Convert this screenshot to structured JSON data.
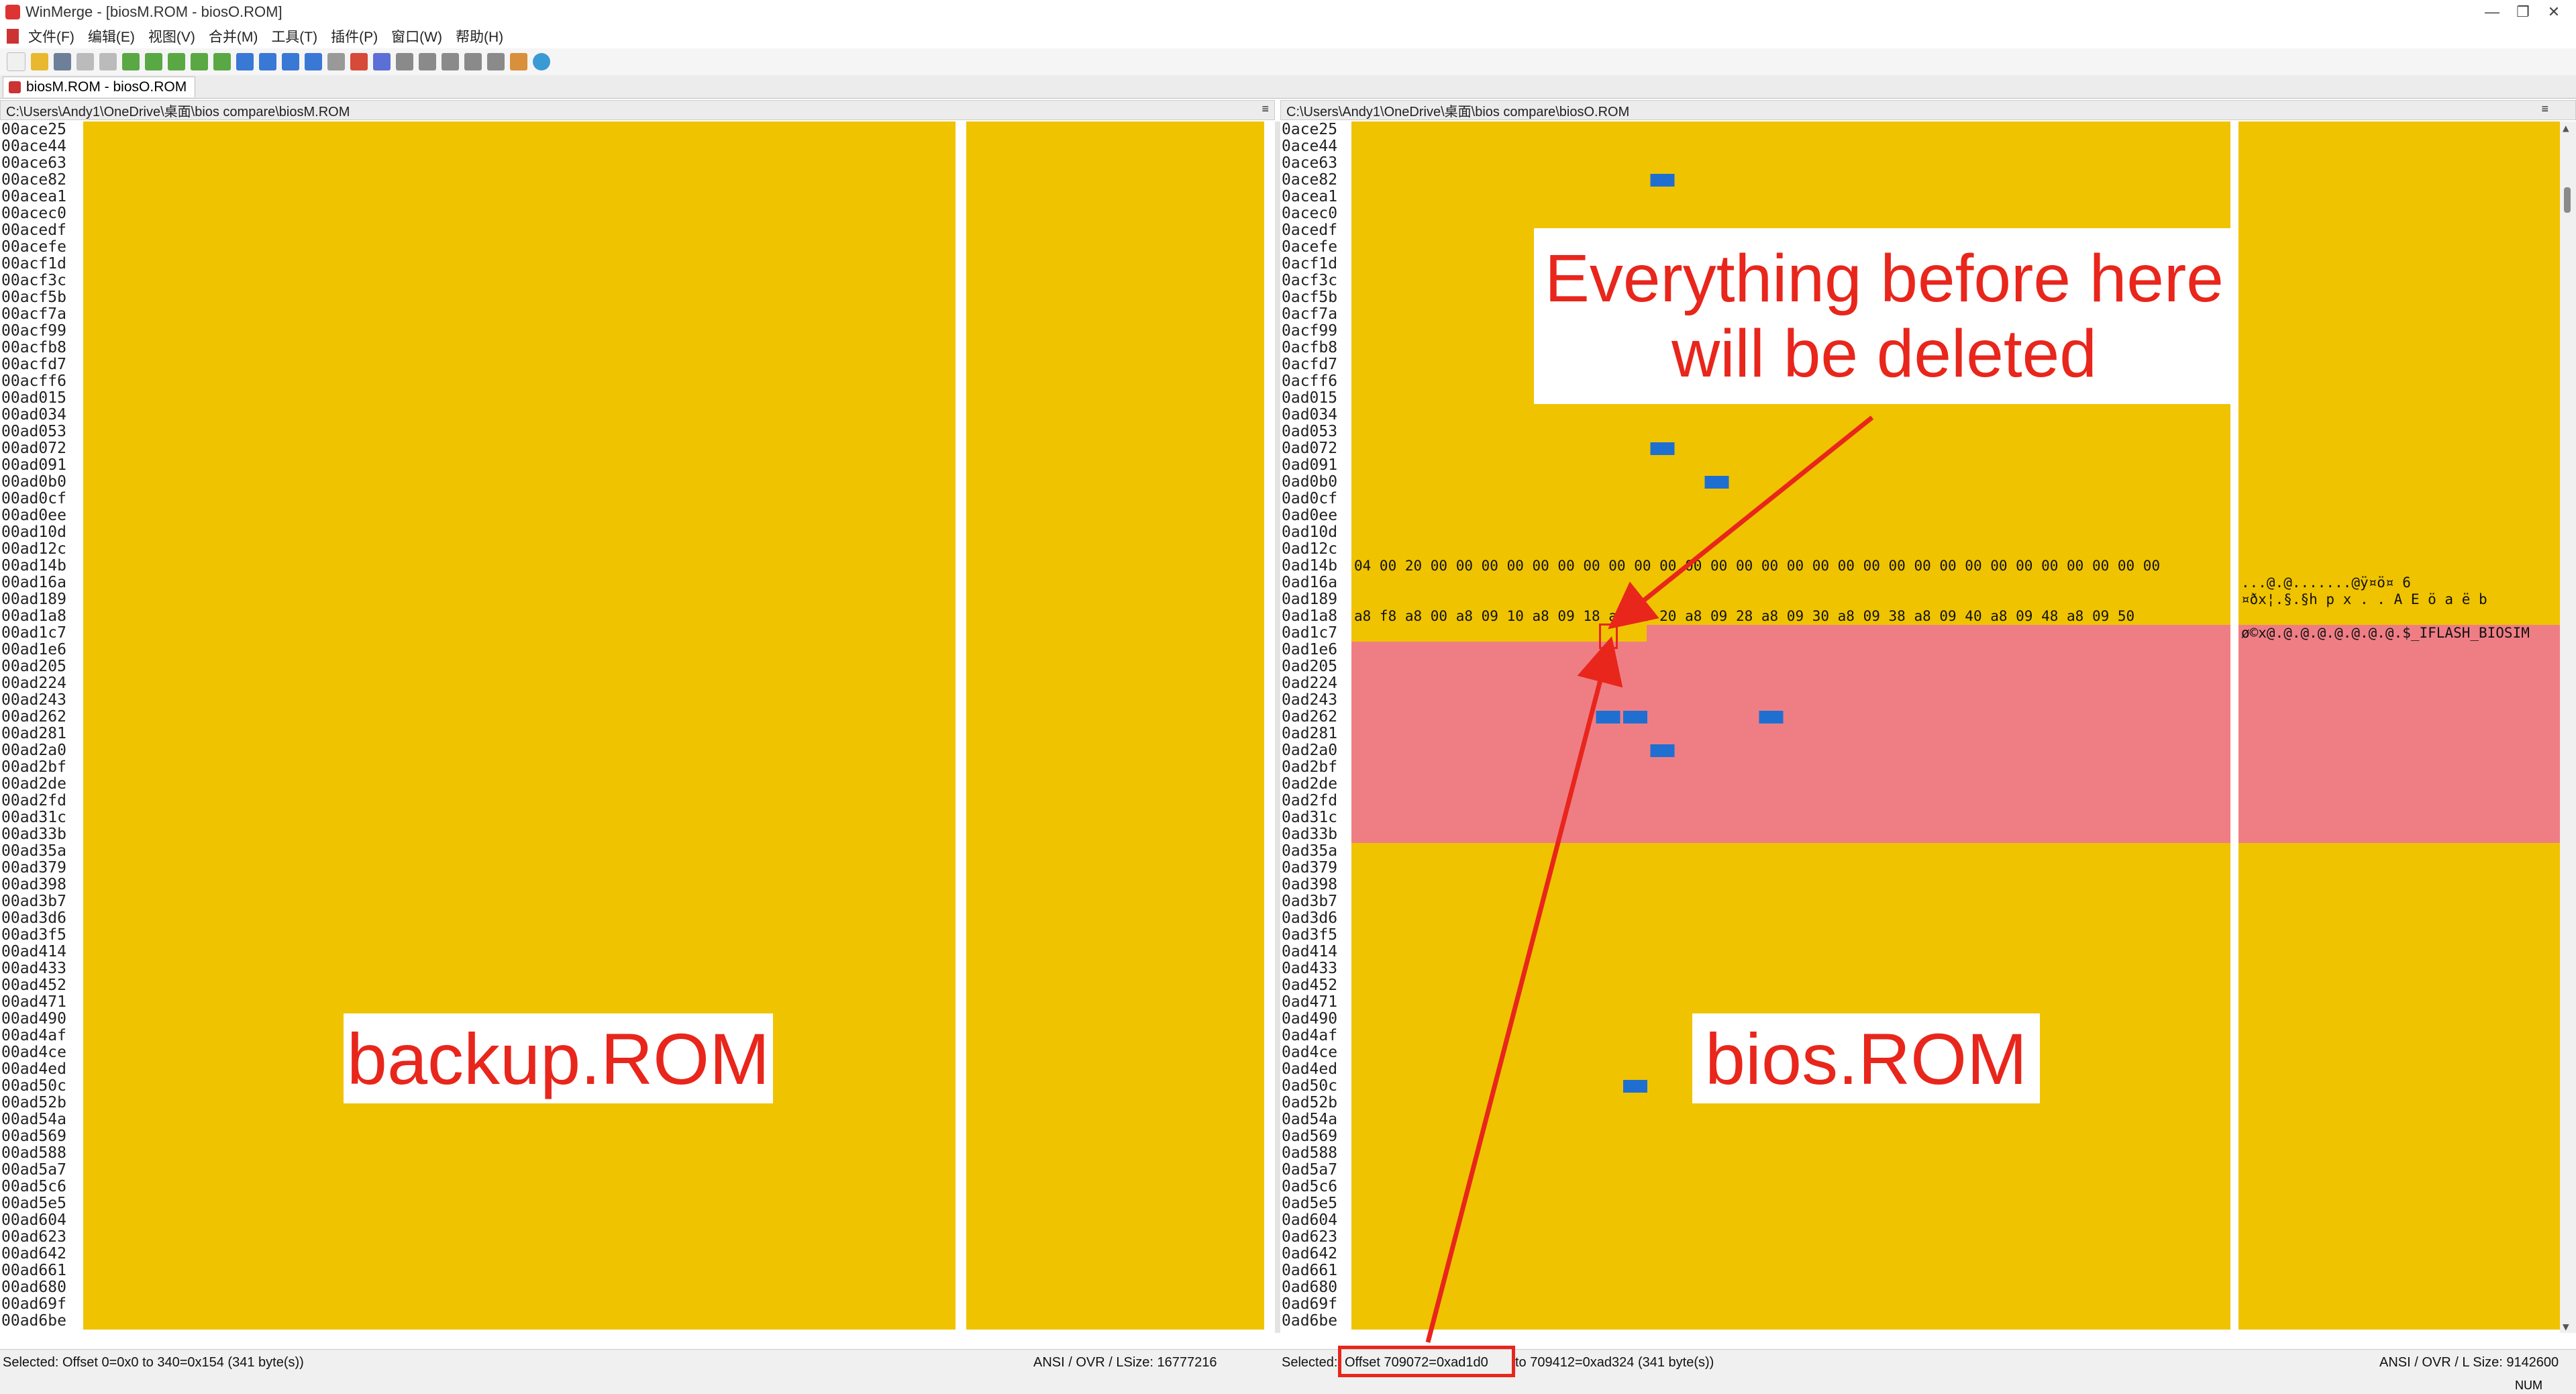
{
  "window": {
    "title": "WinMerge - [biosM.ROM - biosO.ROM]",
    "controls": [
      "—",
      "❐",
      "✕"
    ]
  },
  "menu": [
    "文件(F)",
    "编辑(E)",
    "视图(V)",
    "合并(M)",
    "工具(T)",
    "插件(P)",
    "窗口(W)",
    "帮助(H)"
  ],
  "tab": {
    "label": "biosM.ROM - biosO.ROM"
  },
  "left_pane": {
    "path": "C:\\Users\\Andy1\\OneDrive\\桌面\\bios compare\\biosM.ROM",
    "offsets": [
      "00ace25",
      "00ace44",
      "00ace63",
      "00ace82",
      "00acea1",
      "00acec0",
      "00acedf",
      "00acefe",
      "00acf1d",
      "00acf3c",
      "00acf5b",
      "00acf7a",
      "00acf99",
      "00acfb8",
      "00acfd7",
      "00acff6",
      "00ad015",
      "00ad034",
      "00ad053",
      "00ad072",
      "00ad091",
      "00ad0b0",
      "00ad0cf",
      "00ad0ee",
      "00ad10d",
      "00ad12c",
      "00ad14b",
      "00ad16a",
      "00ad189",
      "00ad1a8",
      "00ad1c7",
      "00ad1e6",
      "00ad205",
      "00ad224",
      "00ad243",
      "00ad262",
      "00ad281",
      "00ad2a0",
      "00ad2bf",
      "00ad2de",
      "00ad2fd",
      "00ad31c",
      "00ad33b",
      "00ad35a",
      "00ad379",
      "00ad398",
      "00ad3b7",
      "00ad3d6",
      "00ad3f5",
      "00ad414",
      "00ad433",
      "00ad452",
      "00ad471",
      "00ad490",
      "00ad4af",
      "00ad4ce",
      "00ad4ed",
      "00ad50c",
      "00ad52b",
      "00ad54a",
      "00ad569",
      "00ad588",
      "00ad5a7",
      "00ad5c6",
      "00ad5e5",
      "00ad604",
      "00ad623",
      "00ad642",
      "00ad661",
      "00ad680",
      "00ad69f",
      "00ad6be"
    ],
    "label_overlay": "backup.ROM"
  },
  "right_pane": {
    "path": "C:\\Users\\Andy1\\OneDrive\\桌面\\bios compare\\biosO.ROM",
    "offsets": [
      "0ace25",
      "0ace44",
      "0ace63",
      "0ace82",
      "0acea1",
      "0acec0",
      "0acedf",
      "0acefe",
      "0acf1d",
      "0acf3c",
      "0acf5b",
      "0acf7a",
      "0acf99",
      "0acfb8",
      "0acfd7",
      "0acff6",
      "0ad015",
      "0ad034",
      "0ad053",
      "0ad072",
      "0ad091",
      "0ad0b0",
      "0ad0cf",
      "0ad0ee",
      "0ad10d",
      "0ad12c",
      "0ad14b",
      "0ad16a",
      "0ad189",
      "0ad1a8",
      "0ad1c7",
      "0ad1e6",
      "0ad205",
      "0ad224",
      "0ad243",
      "0ad262",
      "0ad281",
      "0ad2a0",
      "0ad2bf",
      "0ad2de",
      "0ad2fd",
      "0ad31c",
      "0ad33b",
      "0ad35a",
      "0ad379",
      "0ad398",
      "0ad3b7",
      "0ad3d6",
      "0ad3f5",
      "0ad414",
      "0ad433",
      "0ad452",
      "0ad471",
      "0ad490",
      "0ad4af",
      "0ad4ce",
      "0ad4ed",
      "0ad50c",
      "0ad52b",
      "0ad54a",
      "0ad569",
      "0ad588",
      "0ad5a7",
      "0ad5c6",
      "0ad5e5",
      "0ad604",
      "0ad623",
      "0ad642",
      "0ad661",
      "0ad680",
      "0ad69f",
      "0ad6be"
    ],
    "label_overlay": "bios.ROM",
    "visible_text": {
      "row_169": "04 00 20 00 00 00 00 00 00 00 00 00 00 00 00 00 00 00 00 00 00 00 00 00 00 00 00 00 00 00 00 00",
      "row_18a": "a8 f8 a8 00 a8 09 10 a8 09 18 a8 09 20 a8 09 28 a8 09 30 a8 09 38 a8 09 40 a8 09 48 a8 09 50",
      "ascii_169": "...@.@.......@ÿ¤ö¤ 6",
      "ascii_188": "¤ðx¦.§.§h p x . . A E ö a ë b",
      "ascii_1a7": "ø©x@.@.@.@.@.@.@.@.$_IFLASH_BIOSIM"
    }
  },
  "status": {
    "left_selection": "Selected: Offset 0=0x0 to 340=0x154 (341 byte(s))",
    "left_info": "ANSI / OVR / LSize: 16777216",
    "right_prefix": "Selected:",
    "right_offset": "Offset 709072=0xad1d0",
    "right_rest": "to 709412=0xad324 (341 byte(s))",
    "right_info": "ANSI / OVR / L Size: 9142600",
    "num": "NUM"
  },
  "annotation": {
    "callout": "Everything before here will be deleted"
  },
  "colors": {
    "diff_yellow": "#efc300",
    "diff_red": "#ef7e84",
    "selected_blue": "#1f6fd1",
    "annotation_red": "#e8261c"
  }
}
